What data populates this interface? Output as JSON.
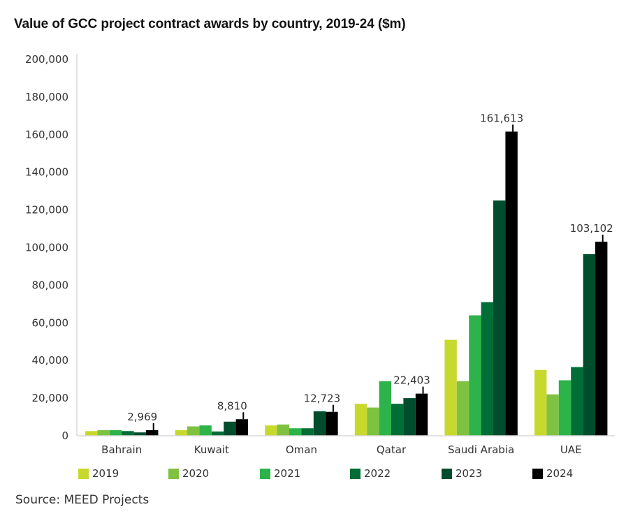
{
  "chart_data": {
    "type": "bar",
    "title": "Value of GCC project contract awards by country, 2019-24 ($m)",
    "xlabel": "",
    "ylabel": "",
    "ylim": [
      0,
      200000
    ],
    "yticks": [
      0,
      20000,
      40000,
      60000,
      80000,
      100000,
      120000,
      140000,
      160000,
      180000,
      200000
    ],
    "ytick_labels": [
      "0",
      "20,000",
      "40,000",
      "60,000",
      "80,000",
      "100,000",
      "120,000",
      "140,000",
      "160,000",
      "180,000",
      "200,000"
    ],
    "grid": false,
    "legend_position": "bottom",
    "categories": [
      "Bahrain",
      "Kuwait",
      "Oman",
      "Qatar",
      "Saudi Arabia",
      "UAE"
    ],
    "series": [
      {
        "name": "2019",
        "color": "#c8d92e",
        "values": [
          2500,
          3000,
          5500,
          17000,
          51000,
          35000
        ]
      },
      {
        "name": "2020",
        "color": "#7fc241",
        "values": [
          3000,
          5000,
          6000,
          15000,
          29000,
          22000
        ]
      },
      {
        "name": "2021",
        "color": "#2db34a",
        "values": [
          3000,
          5500,
          4000,
          29000,
          64000,
          29500
        ]
      },
      {
        "name": "2022",
        "color": "#006e36",
        "values": [
          2500,
          2300,
          4000,
          17000,
          71000,
          36500
        ]
      },
      {
        "name": "2023",
        "color": "#004d2e",
        "values": [
          1800,
          7500,
          13000,
          20000,
          125000,
          96500
        ]
      },
      {
        "name": "2024",
        "color": "#000000",
        "values": [
          2969,
          8810,
          12723,
          22403,
          161613,
          103102
        ]
      }
    ],
    "data_labels": [
      {
        "category": "Bahrain",
        "series": "2024",
        "text": "2,969"
      },
      {
        "category": "Kuwait",
        "series": "2024",
        "text": "8,810"
      },
      {
        "category": "Oman",
        "series": "2024",
        "text": "12,723"
      },
      {
        "category": "Qatar",
        "series": "2024",
        "text": "22,403"
      },
      {
        "category": "Saudi Arabia",
        "series": "2024",
        "text": "161,613"
      },
      {
        "category": "UAE",
        "series": "2024",
        "text": "103,102"
      }
    ]
  },
  "source": "Source: MEED Projects",
  "colors": {
    "axis": "#d9d9d9",
    "text": "#333333"
  }
}
